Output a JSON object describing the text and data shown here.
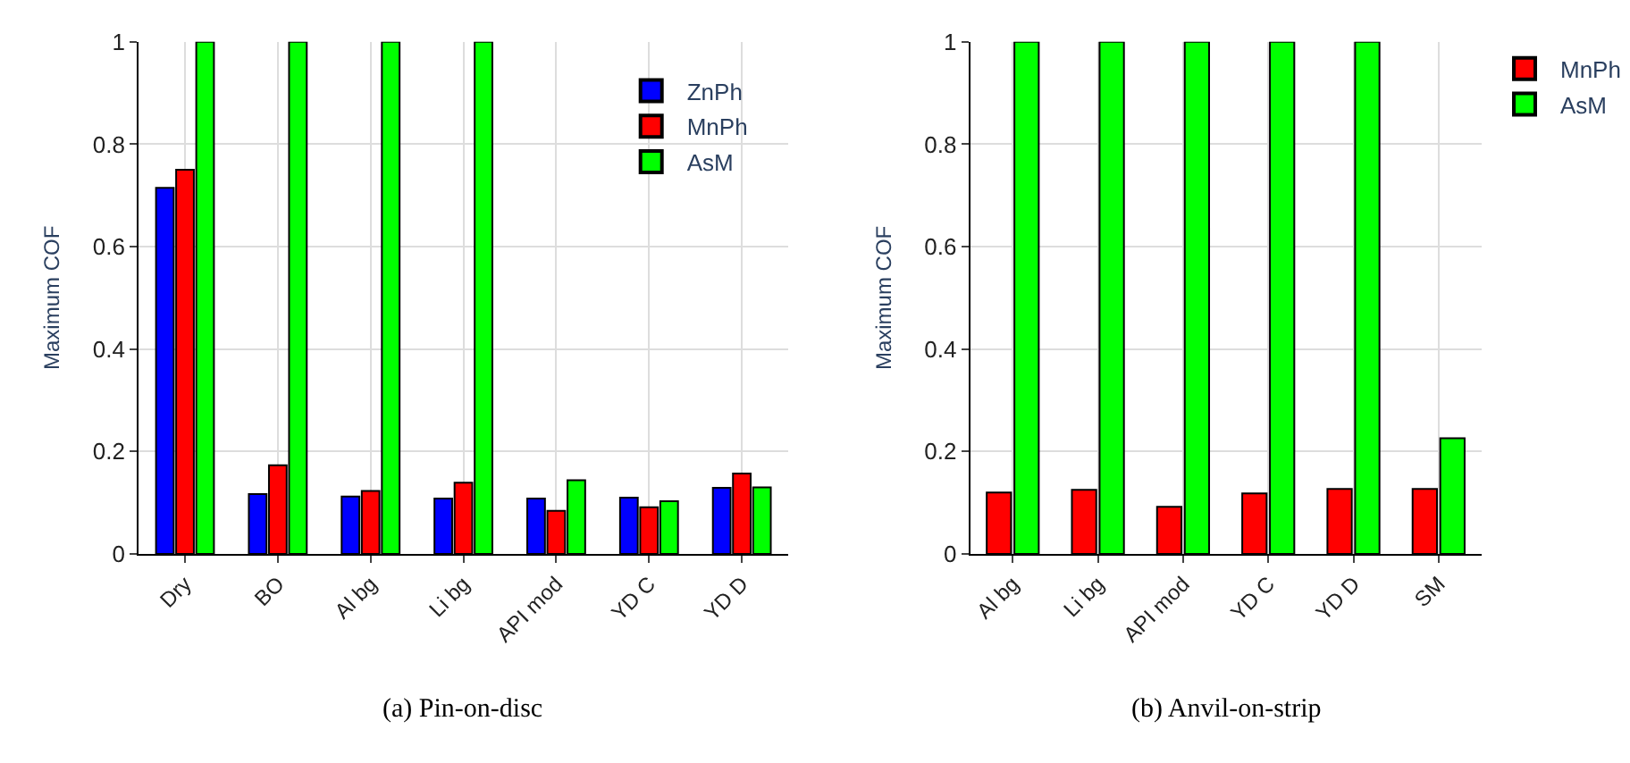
{
  "chart_data": [
    {
      "type": "bar",
      "title": "(a) Pin-on-disc",
      "ylabel": "Maximum COF",
      "categories": [
        "Dry",
        "BO",
        "Al bg",
        "Li bg",
        "API mod",
        "YD C",
        "YD D"
      ],
      "series": [
        {
          "name": "ZnPh",
          "color": "#0000ff",
          "values": [
            0.715,
            0.117,
            0.112,
            0.108,
            0.108,
            0.11,
            0.129
          ]
        },
        {
          "name": "MnPh",
          "color": "#ff0000",
          "values": [
            0.75,
            0.173,
            0.123,
            0.139,
            0.084,
            0.091,
            0.157
          ]
        },
        {
          "name": "AsM",
          "color": "#00ff00",
          "values": [
            1,
            1,
            1,
            1,
            0.144,
            0.103,
            0.13
          ]
        }
      ],
      "ylim": [
        0,
        1
      ],
      "yticks": [
        0,
        0.2,
        0.4,
        0.6,
        0.8,
        1
      ],
      "grid": true,
      "legend": "top right"
    },
    {
      "type": "bar",
      "title": "(b) Anvil-on-strip",
      "ylabel": "Maximum COF",
      "categories": [
        "Al bg",
        "Li bg",
        "API mod",
        "YD C",
        "YD D",
        "SM"
      ],
      "series": [
        {
          "name": "MnPh",
          "color": "#ff0000",
          "values": [
            0.12,
            0.125,
            0.092,
            0.118,
            0.127,
            0.127
          ]
        },
        {
          "name": "AsM",
          "color": "#00ff00",
          "values": [
            1,
            1,
            1,
            1,
            1,
            0.226
          ]
        }
      ],
      "ylim": [
        0,
        1
      ],
      "yticks": [
        0,
        0.2,
        0.4,
        0.6,
        0.8,
        1
      ],
      "grid": true,
      "legend": "right"
    }
  ]
}
